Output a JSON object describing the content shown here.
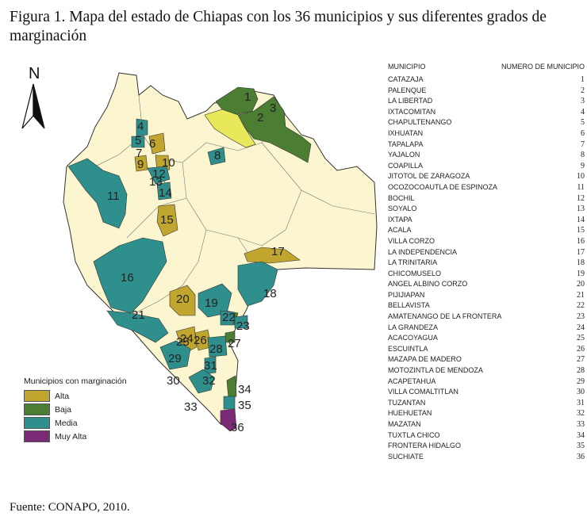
{
  "title": "Figura 1. Mapa del estado de Chiapas con los 36 municipios y sus diferentes grados de marginación",
  "source": "Fuente: CONAPO, 2010.",
  "north_label": "N",
  "table": {
    "header_name": "MUNICIPIO",
    "header_number": "NUMERO DE MUNICIPIO",
    "rows": [
      {
        "name": "CATAZAJA",
        "num": "1"
      },
      {
        "name": "PALENQUE",
        "num": "2"
      },
      {
        "name": "LA LIBERTAD",
        "num": "3"
      },
      {
        "name": "IXTACOMITAN",
        "num": "4"
      },
      {
        "name": "CHAPULTENANGO",
        "num": "5"
      },
      {
        "name": "IXHUATAN",
        "num": "6"
      },
      {
        "name": "TAPALAPA",
        "num": "7"
      },
      {
        "name": "YAJALON",
        "num": "8"
      },
      {
        "name": "COAPILLA",
        "num": "9"
      },
      {
        "name": "JITOTOL DE ZARAGOZA",
        "num": "10"
      },
      {
        "name": "OCOZOCOAUTLA DE ESPINOZA",
        "num": "11"
      },
      {
        "name": "BOCHIL",
        "num": "12"
      },
      {
        "name": "SOYALO",
        "num": "13"
      },
      {
        "name": "IXTAPA",
        "num": "14"
      },
      {
        "name": "ACALA",
        "num": "15"
      },
      {
        "name": "VILLA CORZO",
        "num": "16"
      },
      {
        "name": "LA INDEPENDENCIA",
        "num": "17"
      },
      {
        "name": "LA TRINITARIA",
        "num": "18"
      },
      {
        "name": "CHICOMUSELO",
        "num": "19"
      },
      {
        "name": "ANGEL ALBINO CORZO",
        "num": "20"
      },
      {
        "name": "PIJIJIAPAN",
        "num": "21"
      },
      {
        "name": "BELLAVISTA",
        "num": "22"
      },
      {
        "name": "AMATENANGO DE LA FRONTERA",
        "num": "23"
      },
      {
        "name": "LA GRANDEZA",
        "num": "24"
      },
      {
        "name": "ACACOYAGUA",
        "num": "25"
      },
      {
        "name": "ESCUINTLA",
        "num": "26"
      },
      {
        "name": "MAZAPA DE MADERO",
        "num": "27"
      },
      {
        "name": "MOTOZINTLA DE MENDOZA",
        "num": "28"
      },
      {
        "name": "ACAPETAHUA",
        "num": "29"
      },
      {
        "name": "VILLA COMALTITLAN",
        "num": "30"
      },
      {
        "name": "TUZANTAN",
        "num": "31"
      },
      {
        "name": "HUEHUETAN",
        "num": "32"
      },
      {
        "name": "MAZATAN",
        "num": "33"
      },
      {
        "name": "TUXTLA CHICO",
        "num": "34"
      },
      {
        "name": "FRONTERA HIDALGO",
        "num": "35"
      },
      {
        "name": "SUCHIATE",
        "num": "36"
      }
    ]
  },
  "legend": {
    "title": "Municipios con marginación",
    "items": [
      {
        "label": "Alta",
        "color": "#c0a62f"
      },
      {
        "label": "Baja",
        "color": "#4b7d33"
      },
      {
        "label": "Media",
        "color": "#2e8f8c"
      },
      {
        "label": "Muy Alta",
        "color": "#7b2a75"
      }
    ]
  },
  "map_labels": [
    "1",
    "2",
    "3",
    "4",
    "5",
    "6",
    "7",
    "8",
    "9",
    "10",
    "11",
    "12",
    "13",
    "14",
    "15",
    "16",
    "17",
    "18",
    "19",
    "20",
    "21",
    "22",
    "23",
    "24",
    "25",
    "26",
    "27",
    "28",
    "29",
    "30",
    "31",
    "32",
    "33",
    "34",
    "35",
    "36"
  ]
}
